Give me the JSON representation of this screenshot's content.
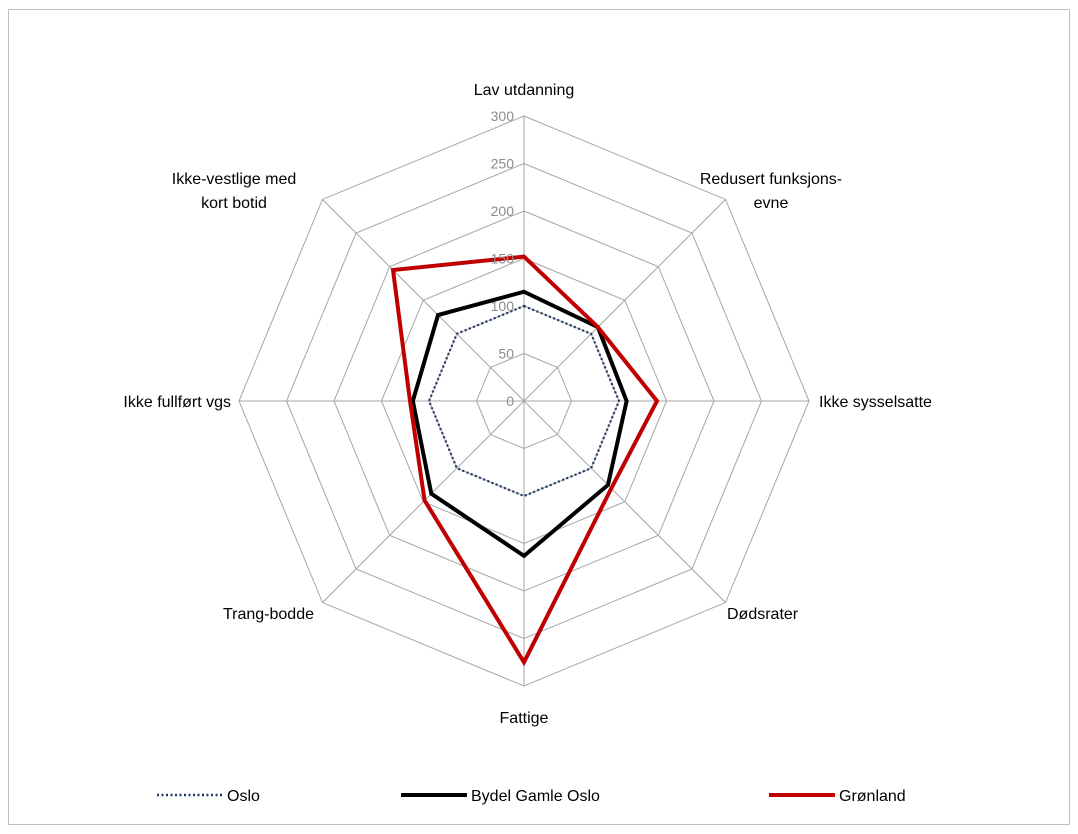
{
  "chart_data": {
    "type": "radar",
    "title": "",
    "axes": [
      "Lav utdanning",
      "Redusert funksjons-evne",
      "Ikke sysselsatte",
      "Dødsrater",
      "Fattige",
      "Trang-bodde",
      "Ikke fullført vgs",
      "Ikke-vestlige med kort botid"
    ],
    "axis_label_lines": [
      [
        "Lav utdanning"
      ],
      [
        "Redusert funksjons-",
        "evne"
      ],
      [
        "Ikke sysselsatte"
      ],
      [
        "Dødsrater"
      ],
      [
        "Fattige"
      ],
      [
        "Trang-bodde"
      ],
      [
        "Ikke fullført vgs"
      ],
      [
        "Ikke-vestlige med",
        "kort botid"
      ]
    ],
    "range": [
      0,
      300
    ],
    "ticks": [
      0,
      50,
      100,
      150,
      200,
      250,
      300
    ],
    "tick_labels": [
      "0",
      "50",
      "100",
      "150",
      "200",
      "250",
      "300"
    ],
    "grid": true,
    "legend_position": "bottom",
    "series": [
      {
        "name": "Oslo",
        "values": [
          100,
          100,
          100,
          100,
          100,
          100,
          100,
          100
        ],
        "color": "#1f3864",
        "style": "dotted"
      },
      {
        "name": "Bydel Gamle Oslo",
        "values": [
          115,
          110,
          108,
          125,
          163,
          138,
          117,
          128
        ],
        "color": "#000000",
        "style": "solid"
      },
      {
        "name": "Grønland",
        "values": [
          152,
          110,
          140,
          130,
          275,
          148,
          120,
          195
        ],
        "color": "#c00000",
        "style": "solid"
      }
    ]
  }
}
